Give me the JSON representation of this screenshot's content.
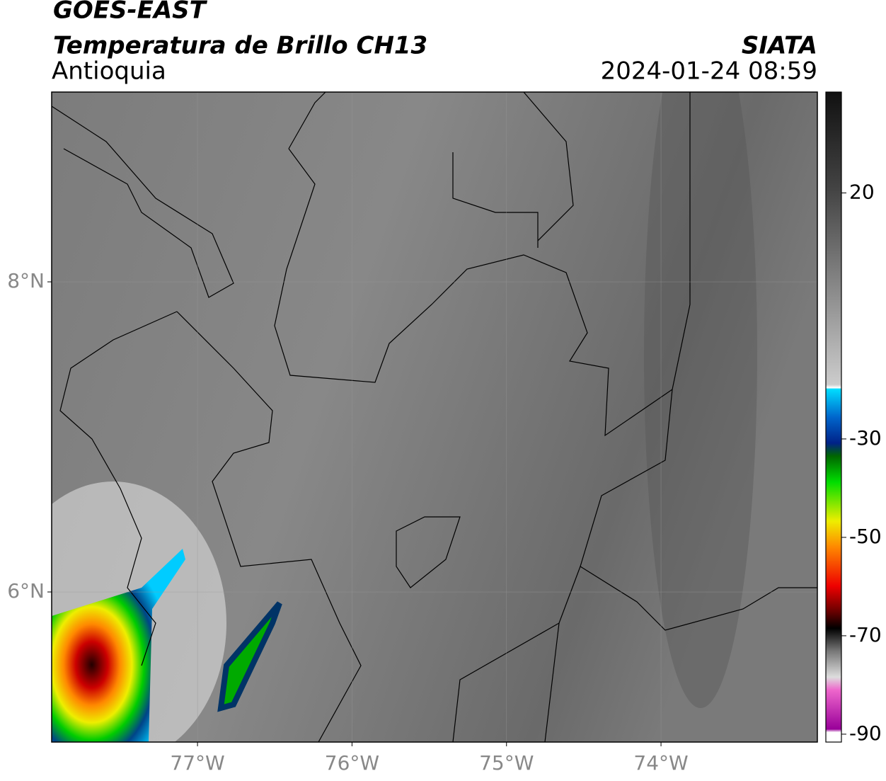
{
  "header": {
    "title": "GOES-EAST",
    "subtitle": "Temperatura de Brillo CH13",
    "region": "Antioquia",
    "source": "SIATA",
    "timestamp": "2024-01-24 08:59"
  },
  "map": {
    "xlim": [
      -77.944,
      -72.988
    ],
    "ylim": [
      5.032,
      9.224
    ],
    "xticks": [
      {
        "value": -77,
        "label": "77°W"
      },
      {
        "value": -76,
        "label": "76°W"
      },
      {
        "value": -75,
        "label": "75°W"
      },
      {
        "value": -74,
        "label": "74°W"
      }
    ],
    "yticks": [
      {
        "value": 6,
        "label": "6°N"
      },
      {
        "value": 8,
        "label": "8°N"
      }
    ],
    "grid": true
  },
  "colorbar": {
    "lim": [
      -91.6,
      40.5
    ],
    "ticks": [
      20,
      -30,
      -50,
      -70,
      -90
    ]
  }
}
